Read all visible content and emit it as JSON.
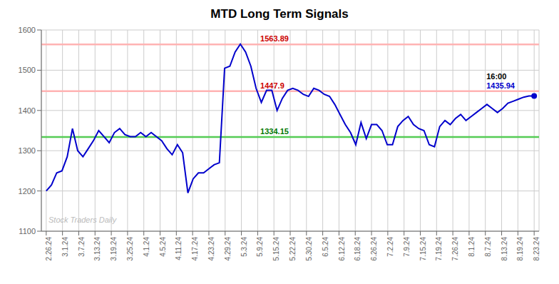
{
  "chart_data": {
    "type": "line",
    "title": "MTD Long Term Signals",
    "xlim": [
      -0.3,
      30.3
    ],
    "xticks": [
      {
        "value": 0,
        "label": "2.26.24"
      },
      {
        "value": 1,
        "label": "3.1.24"
      },
      {
        "value": 2,
        "label": "3.7.24"
      },
      {
        "value": 3,
        "label": "3.13.24"
      },
      {
        "value": 4,
        "label": "3.19.24"
      },
      {
        "value": 5,
        "label": "3.25.24"
      },
      {
        "value": 6,
        "label": "4.1.24"
      },
      {
        "value": 7,
        "label": "4.5.24"
      },
      {
        "value": 8,
        "label": "4.11.24"
      },
      {
        "value": 9,
        "label": "4.17.24"
      },
      {
        "value": 10,
        "label": "4.23.24"
      },
      {
        "value": 11,
        "label": "4.29.24"
      },
      {
        "value": 12,
        "label": "5.3.24"
      },
      {
        "value": 13,
        "label": "5.9.24"
      },
      {
        "value": 14,
        "label": "5.15.24"
      },
      {
        "value": 15,
        "label": "5.22.24"
      },
      {
        "value": 16,
        "label": "5.30.24"
      },
      {
        "value": 17,
        "label": "6.5.24"
      },
      {
        "value": 18,
        "label": "6.12.24"
      },
      {
        "value": 19,
        "label": "6.18.24"
      },
      {
        "value": 20,
        "label": "6.26.24"
      },
      {
        "value": 21,
        "label": "7.2.24"
      },
      {
        "value": 22,
        "label": "7.9.24"
      },
      {
        "value": 23,
        "label": "7.15.24"
      },
      {
        "value": 24,
        "label": "7.19.24"
      },
      {
        "value": 25,
        "label": "7.26.24"
      },
      {
        "value": 26,
        "label": "8.1.24"
      },
      {
        "value": 27,
        "label": "8.7.24"
      },
      {
        "value": 28,
        "label": "8.13.24"
      },
      {
        "value": 29,
        "label": "8.19.24"
      },
      {
        "value": 30,
        "label": "8.23.24"
      }
    ],
    "ylim": [
      1100,
      1600
    ],
    "yticks": [
      1100,
      1200,
      1300,
      1400,
      1500,
      1600
    ],
    "grid": true,
    "series": [
      {
        "type": "line",
        "color": "#0000cc",
        "x": [
          0,
          0.3226,
          0.6452,
          0.9677,
          1.2903,
          1.6129,
          1.9355,
          2.2581,
          2.5806,
          2.9032,
          3.2258,
          3.5484,
          3.871,
          4.1935,
          4.5161,
          4.8387,
          5.1613,
          5.4839,
          5.8065,
          6.129,
          6.4516,
          6.7742,
          7.0968,
          7.4194,
          7.7419,
          8.0645,
          8.3871,
          8.7097,
          9.0323,
          9.3548,
          9.6774,
          10,
          10.3226,
          10.6452,
          10.9677,
          11.2903,
          11.6129,
          11.9355,
          12.2581,
          12.5806,
          12.9032,
          13.2258,
          13.5484,
          13.871,
          14.1935,
          14.5161,
          14.8387,
          15.1613,
          15.4839,
          15.8065,
          16.129,
          16.4516,
          16.7742,
          17.0968,
          17.4194,
          17.7419,
          18.0645,
          18.3871,
          18.7097,
          19.0323,
          19.3548,
          19.6774,
          20,
          20.3226,
          20.6452,
          20.9677,
          21.2903,
          21.6129,
          21.9355,
          22.2581,
          22.5806,
          22.9032,
          23.2258,
          23.5484,
          23.871,
          24.1935,
          24.5161,
          24.8387,
          25.1613,
          25.4839,
          25.8065,
          26.129,
          26.4516,
          26.7742,
          27.0968,
          27.4194,
          27.7419,
          28.0645,
          28.3871,
          28.7097,
          29.0323,
          29.3548,
          29.6774,
          30
        ],
        "values": [
          1200,
          1215,
          1245,
          1250,
          1285,
          1355,
          1300,
          1285,
          1305,
          1325,
          1350,
          1335,
          1320,
          1345,
          1355,
          1340,
          1335,
          1335,
          1345,
          1335,
          1345,
          1335,
          1325,
          1305,
          1290,
          1315,
          1295,
          1195,
          1230,
          1245,
          1245,
          1255,
          1265,
          1270,
          1505,
          1510,
          1545,
          1565,
          1545,
          1510,
          1455,
          1420,
          1450,
          1450,
          1400,
          1430,
          1450,
          1455,
          1450,
          1440,
          1435,
          1455,
          1450,
          1440,
          1435,
          1415,
          1390,
          1365,
          1345,
          1315,
          1370,
          1330,
          1365,
          1365,
          1350,
          1315,
          1315,
          1360,
          1375,
          1385,
          1365,
          1355,
          1350,
          1315,
          1310,
          1360,
          1375,
          1365,
          1380,
          1390,
          1375,
          1385,
          1395,
          1405,
          1415,
          1405,
          1395,
          1405,
          1418,
          1423,
          1428,
          1433,
          1436,
          1436
        ]
      },
      {
        "type": "scatter",
        "color": "#0000cc",
        "marker": "o",
        "x": [
          30
        ],
        "values": [
          1436
        ]
      }
    ],
    "reference_lines": [
      {
        "value": 1563.89,
        "color": "#ffb3b3",
        "label": "1563.89",
        "label_color": "#cc0000"
      },
      {
        "value": 1447.9,
        "color": "#ffb3b3",
        "label": "1447.9",
        "label_color": "#cc0000"
      },
      {
        "value": 1334.15,
        "color": "#55cc55",
        "label": "1334.15",
        "label_color": "#007700"
      }
    ],
    "annotations": [
      {
        "text": "16:00",
        "color": "#000000"
      },
      {
        "text": "1435.94",
        "color": "#0000cc"
      },
      {
        "text": "Stock Traders Daily",
        "color": "#bbbbbb"
      }
    ]
  }
}
